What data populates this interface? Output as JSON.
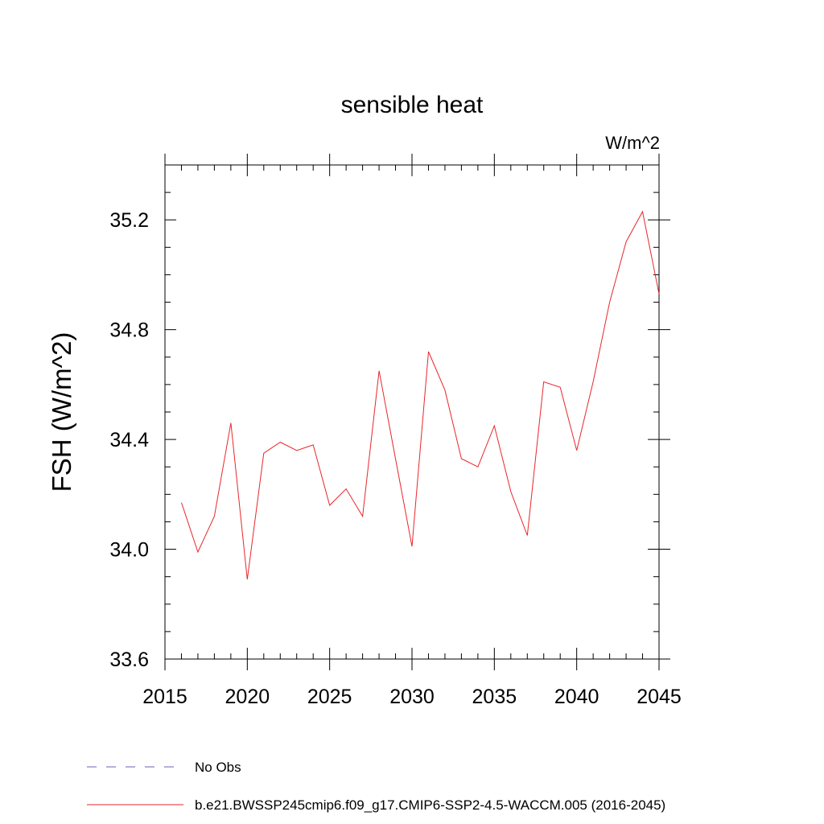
{
  "chart_data": {
    "type": "line",
    "title": "sensible heat",
    "units_label": "W/m^2",
    "ylabel": "FSH  (W/m^2)",
    "xlabel": "",
    "xlim": [
      2015,
      2045
    ],
    "ylim": [
      33.6,
      35.4
    ],
    "x_ticks": [
      2015,
      2020,
      2025,
      2030,
      2035,
      2040,
      2045
    ],
    "x_tick_labels": [
      "2015",
      "2020",
      "2025",
      "2030",
      "2035",
      "2040",
      "2045"
    ],
    "y_ticks": [
      33.6,
      34.0,
      34.4,
      34.8,
      35.2
    ],
    "y_tick_labels": [
      "33.6",
      "34.0",
      "34.4",
      "34.8",
      "35.2"
    ],
    "series": [
      {
        "name": "b.e21.BWSSP245cmip6.f09_g17.CMIP6-SSP2-4.5-WACCM.005 (2016-2045)",
        "color": "#e8262b",
        "x": [
          2016,
          2017,
          2018,
          2019,
          2020,
          2021,
          2022,
          2023,
          2024,
          2025,
          2026,
          2027,
          2028,
          2029,
          2030,
          2031,
          2032,
          2033,
          2034,
          2035,
          2036,
          2037,
          2038,
          2039,
          2040,
          2041,
          2042,
          2043,
          2044,
          2045
        ],
        "values": [
          34.17,
          33.99,
          34.12,
          34.46,
          33.89,
          34.35,
          34.39,
          34.36,
          34.38,
          34.16,
          34.22,
          34.12,
          34.65,
          34.33,
          34.01,
          34.72,
          34.58,
          34.33,
          34.3,
          34.45,
          34.21,
          34.05,
          34.61,
          34.59,
          34.36,
          34.61,
          34.9,
          35.12,
          35.23,
          34.93
        ]
      }
    ],
    "legend": [
      {
        "label": "No Obs",
        "color": "#6b5fb5",
        "style": "dashed"
      },
      {
        "label": "b.e21.BWSSP245cmip6.f09_g17.CMIP6-SSP2-4.5-WACCM.005 (2016-2045)",
        "color": "#e8262b",
        "style": "solid"
      }
    ]
  }
}
